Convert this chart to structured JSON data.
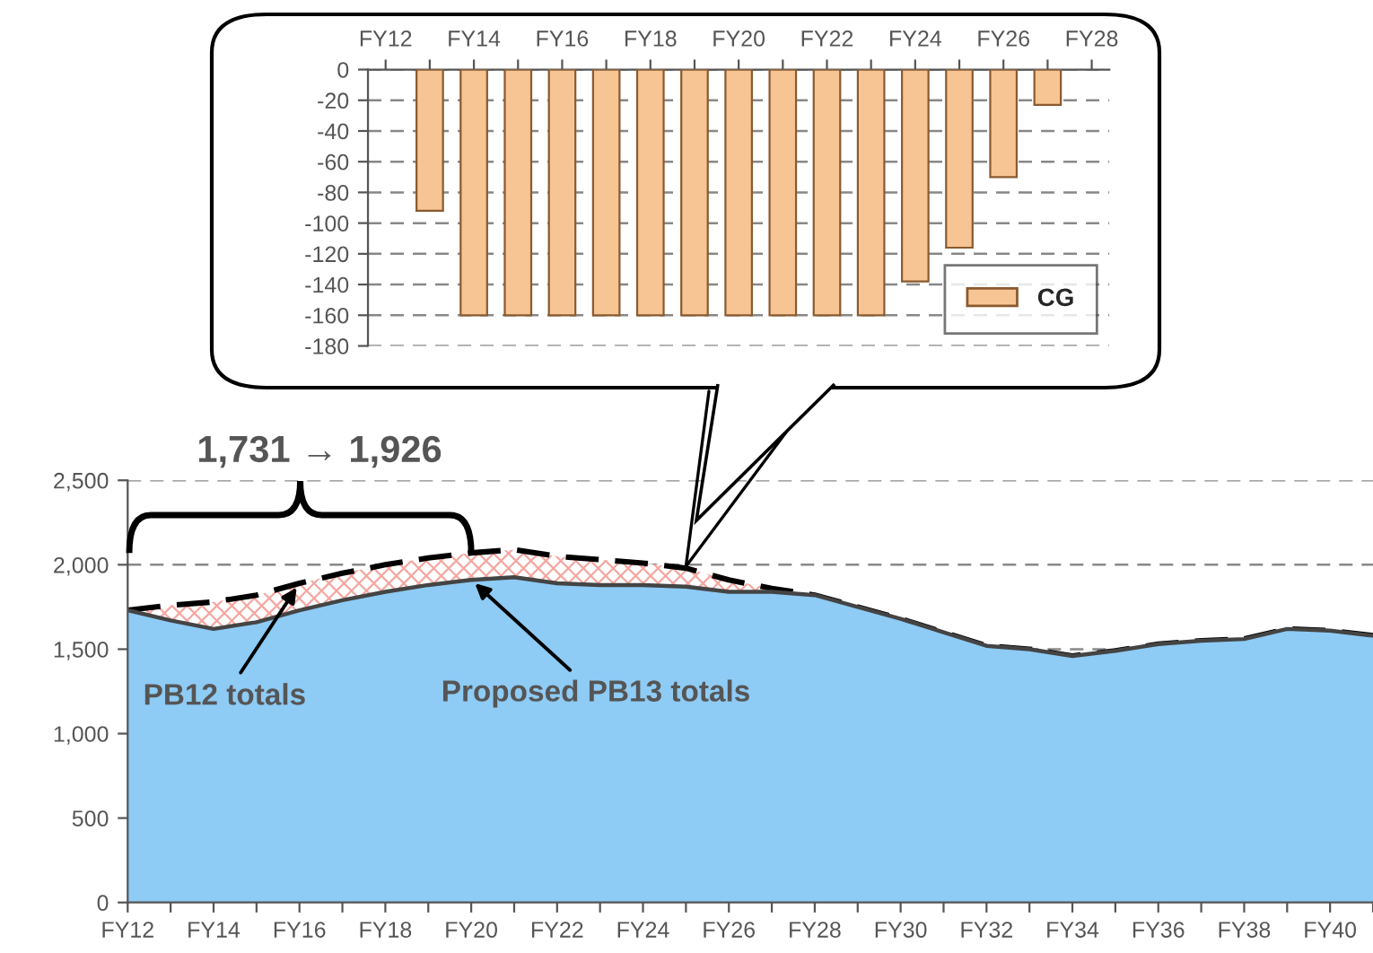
{
  "chart_data": [
    {
      "type": "area",
      "categories": [
        "FY12",
        null,
        "FY14",
        null,
        "FY16",
        null,
        "FY18",
        null,
        "FY20",
        null,
        "FY22",
        null,
        "FY24",
        null,
        "FY26",
        null,
        "FY28",
        null,
        "FY30",
        null,
        "FY32",
        null,
        "FY34",
        null,
        "FY36",
        null,
        "FY38",
        null,
        "FY40",
        null
      ],
      "series": [
        {
          "type": "area",
          "color": "#f4a6a0",
          "line_style": "dashed",
          "values": [
            1731,
            1760,
            1780,
            1820,
            1890,
            1950,
            2000,
            2040,
            2070,
            2090,
            2050,
            2030,
            2010,
            1980,
            1910,
            1860,
            1820,
            1750,
            1680,
            1600,
            1520,
            1500,
            1460,
            1490,
            1530,
            1550,
            1560,
            1620,
            1610,
            1580
          ]
        },
        {
          "type": "area",
          "color": "#8ecbf5",
          "values": [
            1731,
            1670,
            1620,
            1660,
            1730,
            1790,
            1840,
            1880,
            1910,
            1926,
            1890,
            1880,
            1880,
            1870,
            1840,
            1840,
            1820,
            1750,
            1680,
            1600,
            1520,
            1500,
            1460,
            1490,
            1530,
            1550,
            1560,
            1620,
            1610,
            1580
          ]
        }
      ],
      "ylim": [
        0,
        2500
      ],
      "yticks": [
        0,
        500,
        {
          "value": 1000,
          "label": "1,000"
        },
        {
          "value": 1500,
          "label": "1,500"
        },
        {
          "value": 2000,
          "label": "2,000"
        },
        {
          "value": 2500,
          "label": "2,500"
        }
      ],
      "grid": "y",
      "annotations": [
        {
          "text": "PB12 totals",
          "x": "FY16",
          "y": 1890
        },
        {
          "text": "Proposed PB13 totals",
          "x": "FY20",
          "y": 1910
        },
        {
          "text": "1,731 → 1,926",
          "x": "FY20",
          "y": 2070
        }
      ]
    },
    {
      "type": "bar",
      "categories": [
        "FY12",
        null,
        "FY14",
        null,
        "FY16",
        null,
        "FY18",
        null,
        "FY20",
        null,
        "FY22",
        null,
        "FY24",
        null,
        "FY26",
        null,
        "FY28"
      ],
      "series": [
        {
          "name": "CG",
          "color": "#f7c593",
          "values": [
            null,
            -92,
            -160,
            -160,
            -160,
            -160,
            -160,
            -160,
            -160,
            -160,
            -160,
            -160,
            -138,
            -116,
            -70,
            -23,
            null
          ]
        }
      ],
      "ylim": [
        -180,
        0
      ],
      "yticks": [
        -180,
        -160,
        -140,
        -120,
        -100,
        -80,
        -60,
        -40,
        -20,
        0
      ],
      "grid": "y",
      "legend": "lower right"
    }
  ]
}
